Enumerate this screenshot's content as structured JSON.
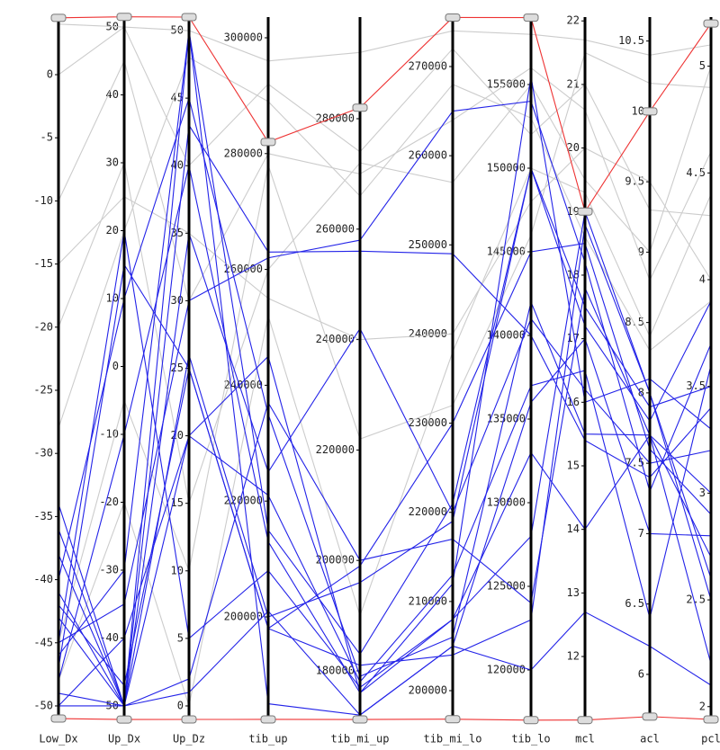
{
  "chart_data": {
    "type": "parallel",
    "axes": [
      {
        "label": "Low_Dx",
        "lim": [
          -51.07,
          4.56
        ],
        "ticks": [
          -50,
          -45,
          -40,
          -35,
          -30,
          -25,
          -20,
          -15,
          -10,
          -5,
          0
        ]
      },
      {
        "label": "Up_Dx",
        "lim": [
          -51.99,
          51.46
        ],
        "ticks": [
          -50,
          -40,
          -30,
          -20,
          -10,
          0,
          10,
          20,
          30,
          40,
          50
        ]
      },
      {
        "label": "Up_Dz",
        "lim": [
          -1.0,
          51.0
        ],
        "ticks": [
          0,
          5,
          10,
          15,
          20,
          25,
          30,
          35,
          40,
          45,
          50
        ]
      },
      {
        "label": "tib_up",
        "lim": [
          182298,
          303571
        ],
        "ticks": [
          200000,
          220000,
          240000,
          260000,
          280000,
          300000
        ]
      },
      {
        "label": "tib_mi_up",
        "lim": [
          171205,
          298404
        ],
        "ticks": [
          180000,
          200000,
          220000,
          240000,
          260000,
          280000
        ]
      },
      {
        "label": "tib_mi_lo",
        "lim": [
          196772,
          275548
        ],
        "ticks": [
          200000,
          210000,
          220000,
          230000,
          240000,
          250000,
          260000,
          270000
        ]
      },
      {
        "label": "tib_lo",
        "lim": [
          117043,
          159032
        ],
        "ticks": [
          120000,
          125000,
          130000,
          135000,
          140000,
          145000,
          150000,
          155000
        ]
      },
      {
        "label": "mcl",
        "lim": [
          11.01,
          22.06
        ],
        "ticks": [
          12,
          13,
          14,
          15,
          16,
          17,
          18,
          19,
          20,
          21,
          22
        ]
      },
      {
        "label": "acl",
        "lim": [
          5.68,
          10.67
        ],
        "ticks": [
          6,
          6.5,
          7,
          7.5,
          8,
          8.5,
          9,
          9.5,
          10,
          10.5
        ]
      },
      {
        "label": "pcl",
        "lim": [
          1.94,
          5.23
        ],
        "ticks": [
          2,
          2.5,
          3,
          3.5,
          4,
          4.5,
          5
        ]
      }
    ],
    "series": [
      {
        "color": "#cccccc",
        "values": [
          4,
          50,
          40,
          292000,
          274000,
          272000,
          152000,
          21.0,
          9.3,
          4.3
        ]
      },
      {
        "color": "#cccccc",
        "values": [
          -20,
          30,
          15,
          260000,
          272000,
          257000,
          155000,
          19.5,
          9.0,
          5.0
        ]
      },
      {
        "color": "#cccccc",
        "values": [
          -10,
          45,
          30,
          280000,
          270000,
          264000,
          156000,
          20.6,
          8.8,
          4.6
        ]
      },
      {
        "color": "#cccccc",
        "values": [
          -15,
          25,
          35,
          255000,
          240000,
          240000,
          148000,
          20.0,
          9.5,
          4.0
        ]
      },
      {
        "color": "#cccccc",
        "values": [
          -45,
          -5,
          10,
          278000,
          222000,
          232000,
          146000,
          21.5,
          10.2,
          4.9
        ]
      },
      {
        "color": "#cccccc",
        "values": [
          -28,
          20,
          48,
          289000,
          266000,
          268000,
          153000,
          18.6,
          8.3,
          3.9
        ]
      },
      {
        "color": "#cccccc",
        "values": [
          -48,
          -20,
          0,
          252000,
          190000,
          238000,
          150000,
          19.3,
          8.4,
          4.4
        ]
      },
      {
        "color": "#cccccc",
        "values": [
          0,
          50,
          50,
          296000,
          292000,
          274000,
          158000,
          21.7,
          10.4,
          5.1
        ]
      },
      {
        "color": "#2323e8",
        "values": [
          -50,
          -50,
          50,
          215000,
          183000,
          221000,
          150000,
          17.5,
          7.9,
          3.5
        ]
      },
      {
        "color": "#2323e8",
        "values": [
          -47,
          15,
          25,
          198000,
          199000,
          230000,
          145000,
          18.5,
          7.6,
          2.9
        ]
      },
      {
        "color": "#2323e8",
        "values": [
          -41,
          -50,
          20,
          245000,
          176000,
          212000,
          155500,
          16.0,
          8.1,
          3.3
        ]
      },
      {
        "color": "#2323e8",
        "values": [
          -40,
          10,
          45,
          235000,
          179000,
          206000,
          142000,
          15.5,
          7.7,
          2.7
        ]
      },
      {
        "color": "#2323e8",
        "values": [
          -45,
          -35,
          30,
          262000,
          258000,
          265000,
          154000,
          18.2,
          7.3,
          3.7
        ]
      },
      {
        "color": "#2323e8",
        "values": [
          -48,
          -10,
          40,
          213000,
          176000,
          208000,
          128000,
          19.0,
          8.0,
          2.5
        ]
      },
      {
        "color": "#2323e8",
        "values": [
          -34,
          -50,
          26,
          200000,
          196000,
          219000,
          150000,
          17.2,
          7.8,
          3.9
        ]
      },
      {
        "color": "#2323e8",
        "values": [
          -50,
          -40,
          20,
          221000,
          178000,
          213000,
          137000,
          16.5,
          6.4,
          3.6
        ]
      },
      {
        "color": "#2323e8",
        "values": [
          -46,
          -30,
          50,
          185000,
          172000,
          205000,
          136000,
          17.0,
          7.0,
          2.8
        ]
      },
      {
        "color": "#2323e8",
        "values": [
          -36,
          -50,
          2,
          237000,
          200000,
          217000,
          124000,
          17.8,
          7.7,
          2.2
        ]
      },
      {
        "color": "#2323e8",
        "values": [
          -43,
          -50,
          43,
          263000,
          256000,
          249000,
          140000,
          15.4,
          7.4,
          3.4
        ]
      },
      {
        "color": "#2323e8",
        "values": [
          -42,
          -47,
          25,
          198000,
          181000,
          204000,
          123000,
          18.8,
          8.0,
          2.6
        ]
      },
      {
        "color": "#2323e8",
        "values": [
          -38,
          -50,
          35,
          225000,
          242000,
          220000,
          141000,
          16.2,
          7.5,
          3.2
        ]
      },
      {
        "color": "#2323e8",
        "values": [
          -49,
          -50,
          1,
          201000,
          172000,
          205000,
          120000,
          12.7,
          6.2,
          2.1
        ]
      },
      {
        "color": "#2323e8",
        "values": [
          -45,
          20,
          5,
          208000,
          177000,
          208000,
          133000,
          14.0,
          7.7,
          3.0
        ]
      },
      {
        "color": "#ee3333",
        "values": [
          4.5,
          51.5,
          51,
          282000,
          282000,
          275500,
          159000,
          19.0,
          10.0,
          5.2
        ]
      },
      {
        "color": "#ee3333",
        "values": [
          -51,
          -52,
          -1,
          182300,
          171200,
          196800,
          117000,
          11.0,
          5.7,
          1.94
        ]
      }
    ]
  }
}
